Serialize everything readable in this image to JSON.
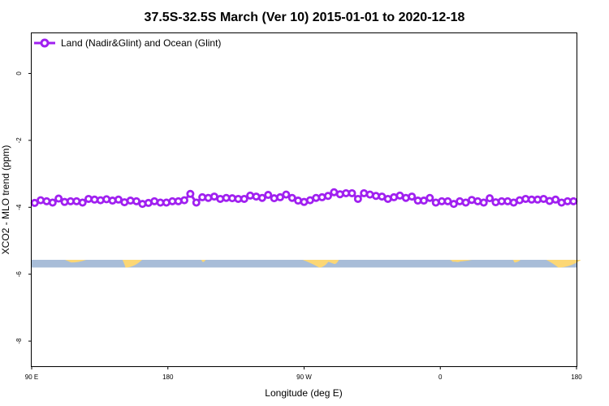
{
  "chart_data": {
    "type": "line",
    "title": "37.5S-32.5S March (Ver 10)   2015-01-01 to 2020-12-18",
    "xlabel": "Longitude (deg E)",
    "ylabel": "XCO2 - MLO trend (ppm)",
    "xlim": [
      90,
      450
    ],
    "ylim": [
      -8.75,
      1.2
    ],
    "x_ticks": [
      {
        "value": 90,
        "label": "90 E"
      },
      {
        "value": 180,
        "label": "180"
      },
      {
        "value": 270,
        "label": "90 W"
      },
      {
        "value": 360,
        "label": "0"
      },
      {
        "value": 450,
        "label": "90 E"
      }
    ],
    "x_ticks_end": {
      "value": 450,
      "label": "180"
    },
    "y_ticks": [
      {
        "value": 0,
        "label": "0"
      },
      {
        "value": -2,
        "label": "-2"
      },
      {
        "value": -4,
        "label": "-4"
      },
      {
        "value": -6,
        "label": "-6"
      },
      {
        "value": -8,
        "label": "-8"
      }
    ],
    "legend": {
      "position": "top-left",
      "label": "Land (Nadir&Glint) and Ocean (Glint)"
    },
    "series": [
      {
        "name": "Land (Nadir&Glint) and Ocean (Glint)",
        "color": "#a020f0",
        "values": [
          -3.87,
          -3.79,
          -3.82,
          -3.86,
          -3.74,
          -3.84,
          -3.82,
          -3.82,
          -3.86,
          -3.75,
          -3.77,
          -3.79,
          -3.76,
          -3.8,
          -3.77,
          -3.85,
          -3.8,
          -3.82,
          -3.9,
          -3.87,
          -3.82,
          -3.86,
          -3.86,
          -3.82,
          -3.82,
          -3.79,
          -3.6,
          -3.86,
          -3.7,
          -3.72,
          -3.68,
          -3.75,
          -3.72,
          -3.73,
          -3.75,
          -3.75,
          -3.65,
          -3.68,
          -3.72,
          -3.63,
          -3.73,
          -3.7,
          -3.62,
          -3.72,
          -3.8,
          -3.84,
          -3.79,
          -3.72,
          -3.7,
          -3.66,
          -3.55,
          -3.61,
          -3.58,
          -3.58,
          -3.75,
          -3.58,
          -3.62,
          -3.66,
          -3.68,
          -3.75,
          -3.7,
          -3.65,
          -3.72,
          -3.68,
          -3.8,
          -3.8,
          -3.72,
          -3.86,
          -3.82,
          -3.82,
          -3.9,
          -3.82,
          -3.86,
          -3.78,
          -3.82,
          -3.86,
          -3.73,
          -3.85,
          -3.82,
          -3.82,
          -3.86,
          -3.79,
          -3.75,
          -3.77,
          -3.77,
          -3.75,
          -3.81,
          -3.77,
          -3.86,
          -3.82,
          -3.82
        ]
      }
    ],
    "map_strip": {
      "ylim": [
        -5.8,
        -5.57
      ],
      "ocean_color": "#a8bdd8",
      "land_color": "#fcd775"
    }
  }
}
